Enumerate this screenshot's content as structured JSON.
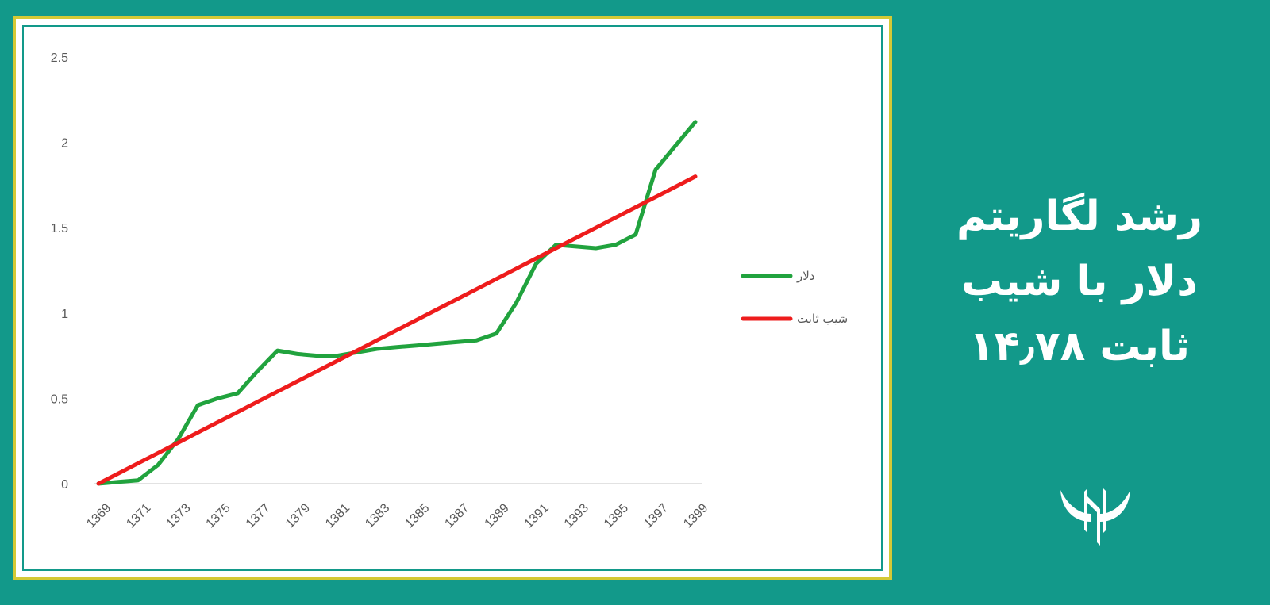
{
  "side_title": {
    "line1": "رشد لگاریتم",
    "line2": "دلار با شیب",
    "line3": "ثابت ۱۴٫۷۸"
  },
  "logo": {
    "icon": "horns-logo-icon",
    "color": "#ffffff"
  },
  "colors": {
    "background": "#12998a",
    "frame_border": "#d4c935"
  },
  "chart_data": {
    "type": "line",
    "x": [
      1369,
      1370,
      1371,
      1372,
      1373,
      1374,
      1375,
      1376,
      1377,
      1378,
      1379,
      1380,
      1381,
      1382,
      1383,
      1384,
      1385,
      1386,
      1387,
      1388,
      1389,
      1390,
      1391,
      1392,
      1393,
      1394,
      1395,
      1396,
      1397,
      1398,
      1399
    ],
    "x_tick_labels": [
      "1369",
      "1371",
      "1373",
      "1375",
      "1377",
      "1379",
      "1381",
      "1383",
      "1385",
      "1387",
      "1389",
      "1391",
      "1393",
      "1395",
      "1397",
      "1399"
    ],
    "y_tick_labels": [
      "0",
      "0.5",
      "1",
      "1.5",
      "2",
      "2.5"
    ],
    "ylim": [
      0,
      2.5
    ],
    "xlabel": "",
    "ylabel": "",
    "grid": false,
    "legend_position": "right",
    "series": [
      {
        "name": "دلار",
        "color": "#21a33e",
        "values": [
          0,
          0.01,
          0.02,
          0.11,
          0.26,
          0.46,
          0.5,
          0.53,
          0.66,
          0.78,
          0.76,
          0.75,
          0.75,
          0.77,
          0.79,
          0.8,
          0.81,
          0.82,
          0.83,
          0.84,
          0.88,
          1.06,
          1.29,
          1.4,
          1.39,
          1.38,
          1.4,
          1.46,
          1.84,
          1.98,
          2.12
        ]
      },
      {
        "name": "شیب ثابت",
        "color": "#ee1c1c",
        "values": [
          0,
          0.06,
          0.12,
          0.18,
          0.24,
          0.3,
          0.36,
          0.42,
          0.48,
          0.54,
          0.6,
          0.66,
          0.72,
          0.78,
          0.84,
          0.9,
          0.96,
          1.02,
          1.08,
          1.14,
          1.2,
          1.26,
          1.32,
          1.38,
          1.44,
          1.5,
          1.56,
          1.62,
          1.68,
          1.74,
          1.8
        ]
      }
    ]
  }
}
